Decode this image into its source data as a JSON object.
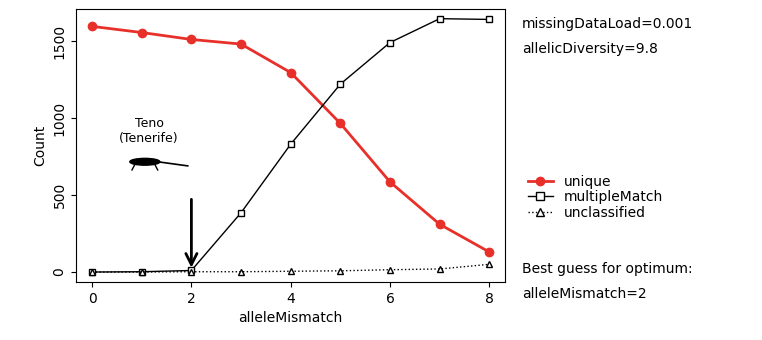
{
  "chart_data": {
    "type": "line",
    "x_label": "alleleMismatch",
    "y_label": "Count",
    "x": [
      0,
      1,
      2,
      3,
      4,
      5,
      6,
      7,
      8
    ],
    "series": [
      {
        "name": "unique",
        "color": "#e8302a",
        "marker": "circle",
        "line_style": "solid",
        "values": [
          1595,
          1555,
          1510,
          1480,
          1295,
          965,
          585,
          310,
          130
        ]
      },
      {
        "name": "multipleMatch",
        "color": "#000000",
        "marker": "square",
        "line_style": "solid",
        "values": [
          0,
          2,
          10,
          385,
          830,
          1220,
          1490,
          1645,
          1640
        ]
      },
      {
        "name": "unclassified",
        "color": "#000000",
        "marker": "triangle",
        "line_style": "dotted",
        "values": [
          0,
          0,
          2,
          2,
          5,
          8,
          15,
          20,
          50
        ]
      }
    ],
    "xlim": [
      -0.32,
      8.32
    ],
    "xticks": [
      0,
      2,
      4,
      6,
      8
    ],
    "ylim": [
      -66,
      1711
    ],
    "yticks": [
      0,
      500,
      1000,
      1500
    ],
    "legend": "center left",
    "annotation": "Teno\n(Tenerife)",
    "arrow": {
      "x": 2,
      "y_start": 490,
      "y_end": 10
    },
    "side_notes": [
      "missingDataLoad=0.001",
      "allelicDiversity=9.8"
    ],
    "optimum_notes": [
      "Best guess for optimum:",
      "alleleMismatch=2"
    ]
  }
}
